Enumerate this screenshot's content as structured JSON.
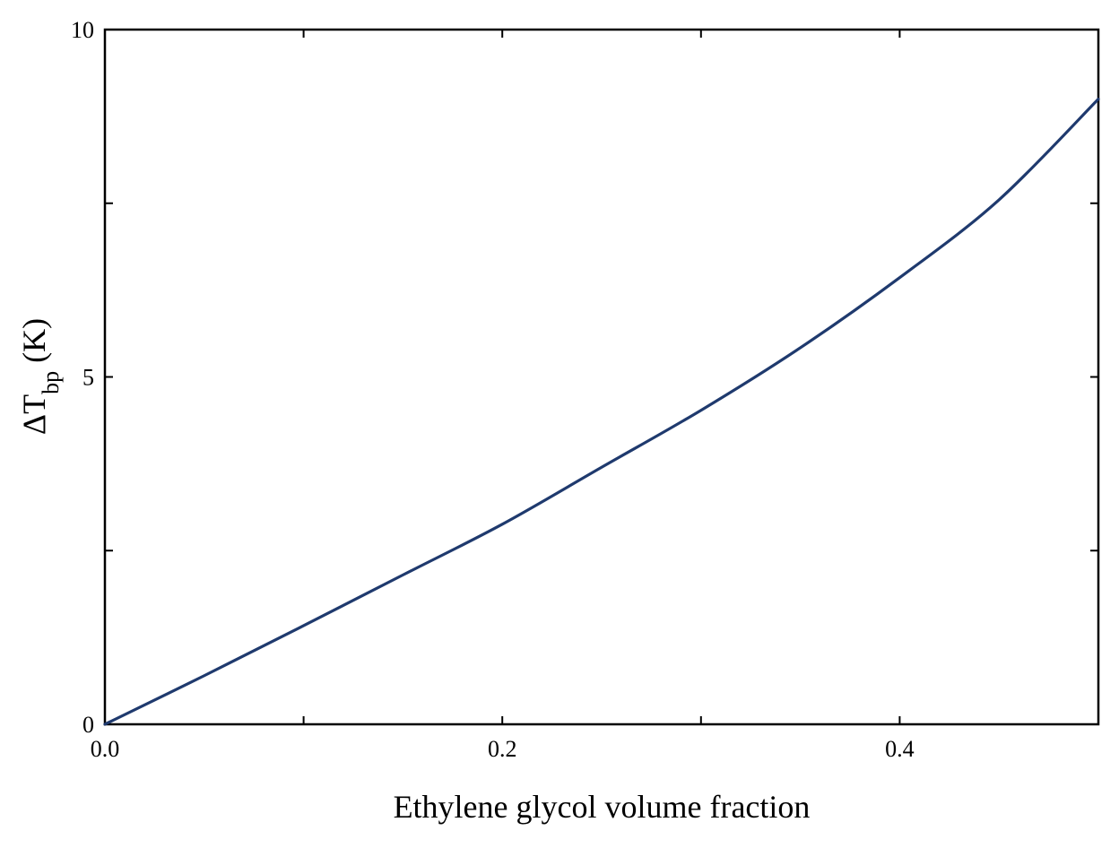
{
  "chart_data": {
    "type": "line",
    "title": "",
    "xlabel": "Ethylene glycol volume fraction",
    "ylabel": {
      "prefix": "ΔT",
      "subscript": "bp",
      "suffix": " (K)"
    },
    "xlim": [
      0.0,
      0.5
    ],
    "ylim": [
      0,
      10
    ],
    "x_ticks": [
      0.0,
      0.1,
      0.2,
      0.3,
      0.4,
      0.5
    ],
    "x_tick_labels": [
      {
        "value": 0.0,
        "label": "0.0"
      },
      {
        "value": 0.2,
        "label": "0.2"
      },
      {
        "value": 0.4,
        "label": "0.4"
      }
    ],
    "y_ticks": [
      0,
      2.5,
      5,
      7.5,
      10
    ],
    "y_tick_labels": [
      {
        "value": 0,
        "label": "0"
      },
      {
        "value": 5,
        "label": "5"
      },
      {
        "value": 10,
        "label": "10"
      }
    ],
    "grid": false,
    "legend": "none",
    "series": [
      {
        "color": "#1f3a6e",
        "x": [
          0.0,
          0.05,
          0.1,
          0.15,
          0.2,
          0.25,
          0.3,
          0.35,
          0.4,
          0.45,
          0.5
        ],
        "y": [
          0.0,
          0.7,
          1.42,
          2.15,
          2.88,
          3.7,
          4.52,
          5.42,
          6.43,
          7.55,
          9.0
        ]
      }
    ]
  }
}
